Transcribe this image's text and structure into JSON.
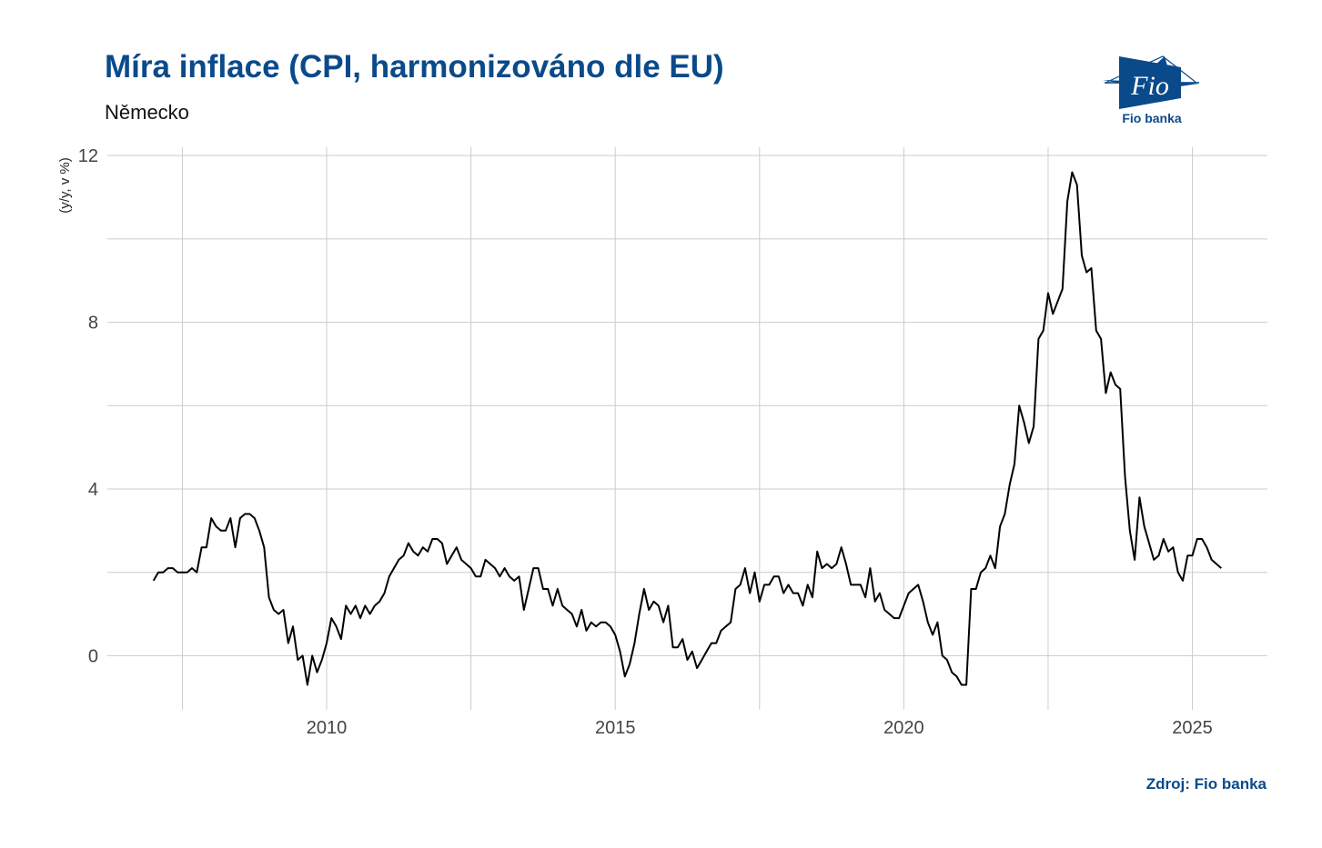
{
  "header": {
    "title": "Míra inflace (CPI, harmonizováno dle EU)",
    "subtitle": "Německo"
  },
  "logo": {
    "text": "Fio banka",
    "mark": "Fio"
  },
  "footer": {
    "source": "Zdroj: Fio banka"
  },
  "colors": {
    "brand": "#0a4a8a",
    "line": "#000000",
    "grid": "#cccccc"
  },
  "chart_data": {
    "type": "line",
    "title": "Míra inflace (CPI, harmonizováno dle EU)",
    "subtitle": "Německo",
    "xlabel": "",
    "ylabel": "(y/y, v %)",
    "x_start": "2007-01",
    "x_frequency": "monthly",
    "xlim": [
      2006.2,
      2026.3
    ],
    "ylim": [
      -1.3,
      12.2
    ],
    "xticks": [
      2010,
      2015,
      2020,
      2025
    ],
    "xtick_labels": [
      "2010",
      "2015",
      "2020",
      "2025"
    ],
    "yticks": [
      0,
      4,
      8,
      12
    ],
    "ytick_labels": [
      "0",
      "4",
      "8",
      "12"
    ],
    "grid": true,
    "legend": "none",
    "series": [
      {
        "values": [
          1.8,
          2.0,
          2.0,
          2.1,
          2.1,
          2.0,
          2.0,
          2.0,
          2.1,
          2.0,
          2.6,
          2.6,
          3.3,
          3.1,
          3.0,
          3.0,
          3.3,
          2.6,
          3.3,
          3.4,
          3.4,
          3.3,
          3.0,
          2.6,
          1.4,
          1.1,
          1.0,
          1.1,
          0.3,
          0.7,
          -0.1,
          0.0,
          -0.7,
          0.0,
          -0.4,
          -0.1,
          0.3,
          0.9,
          0.7,
          0.4,
          1.2,
          1.0,
          1.2,
          0.9,
          1.2,
          1.0,
          1.2,
          1.3,
          1.5,
          1.9,
          2.1,
          2.3,
          2.4,
          2.7,
          2.5,
          2.4,
          2.6,
          2.5,
          2.8,
          2.8,
          2.7,
          2.2,
          2.4,
          2.6,
          2.3,
          2.2,
          2.1,
          1.9,
          1.9,
          2.3,
          2.2,
          2.1,
          1.9,
          2.1,
          1.9,
          1.8,
          1.9,
          1.1,
          1.6,
          2.1,
          2.1,
          1.6,
          1.6,
          1.2,
          1.6,
          1.2,
          1.1,
          1.0,
          0.7,
          1.1,
          0.6,
          0.8,
          0.7,
          0.8,
          0.8,
          0.7,
          0.5,
          0.1,
          -0.5,
          -0.2,
          0.3,
          1.0,
          1.6,
          1.1,
          1.3,
          1.2,
          0.8,
          1.2,
          0.2,
          0.2,
          0.4,
          -0.1,
          0.1,
          -0.3,
          -0.1,
          0.1,
          0.3,
          0.3,
          0.6,
          0.7,
          0.8,
          1.6,
          1.7,
          2.1,
          1.5,
          2.0,
          1.3,
          1.7,
          1.7,
          1.9,
          1.9,
          1.5,
          1.7,
          1.5,
          1.5,
          1.2,
          1.7,
          1.4,
          2.5,
          2.1,
          2.2,
          2.1,
          2.2,
          2.6,
          2.2,
          1.7,
          1.7,
          1.7,
          1.4,
          2.1,
          1.3,
          1.5,
          1.1,
          1.0,
          0.9,
          0.9,
          1.2,
          1.5,
          1.6,
          1.7,
          1.3,
          0.8,
          0.5,
          0.8,
          0.0,
          -0.1,
          -0.4,
          -0.5,
          -0.7,
          -0.7,
          1.6,
          1.6,
          2.0,
          2.1,
          2.4,
          2.1,
          3.1,
          3.4,
          4.1,
          4.6,
          6.0,
          5.6,
          5.1,
          5.5,
          7.6,
          7.8,
          8.7,
          8.2,
          8.5,
          8.8,
          10.9,
          11.6,
          11.3,
          9.6,
          9.2,
          9.3,
          7.8,
          7.6,
          6.3,
          6.8,
          6.5,
          6.4,
          4.3,
          3.0,
          2.3,
          3.8,
          3.1,
          2.7,
          2.3,
          2.4,
          2.8,
          2.5,
          2.6,
          2.0,
          1.8,
          2.4,
          2.4,
          2.8,
          2.8,
          2.6,
          2.3,
          2.2,
          2.1
        ]
      }
    ]
  }
}
